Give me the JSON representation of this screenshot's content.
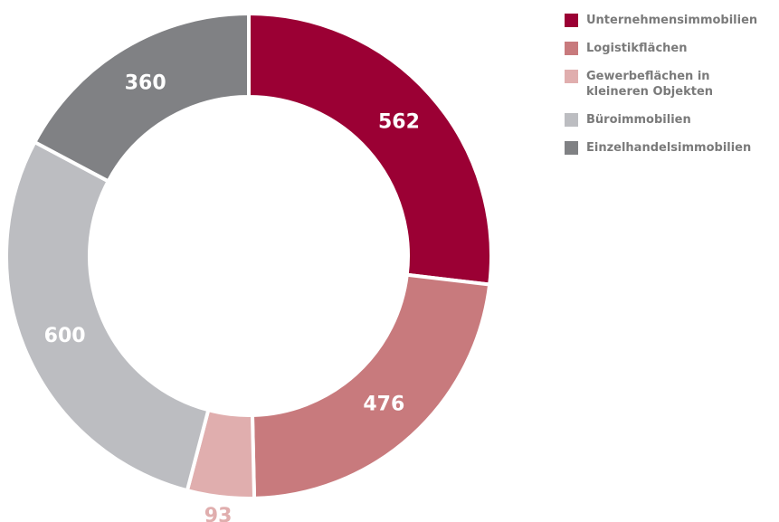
{
  "chart_data": {
    "type": "pie",
    "categories": [
      "Unternehmensimmobilien",
      "Logistikflächen",
      "Gewerbeflächen in kleineren Objekten",
      "Büroimmobilien",
      "Einzelhandelsimmobilien"
    ],
    "values": [
      562,
      476,
      93,
      600,
      360
    ],
    "colors": [
      "#9b0034",
      "#c87a7d",
      "#e0aeae",
      "#bcbdc1",
      "#808184"
    ],
    "donut": true,
    "legend": "right"
  }
}
